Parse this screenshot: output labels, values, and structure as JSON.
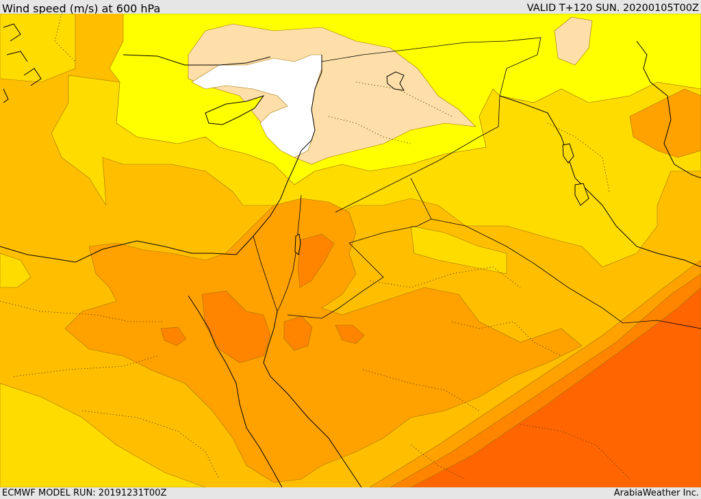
{
  "header": {
    "title": "Wind speed (m/s) at 600 hPa",
    "valid": "VALID T+120 SUN. 20200105T00Z"
  },
  "footer": {
    "model_run": "ECMWF MODEL RUN: 20191231T00Z",
    "credit": "ArabiaWeather Inc."
  },
  "colors": {
    "frame": "#e6e6e6",
    "white": "#ffffff",
    "light": "#ffdfa9",
    "yellow": "#ffff00",
    "gold": "#ffdc00",
    "amber": "#ffbf00",
    "orange": "#ffa200",
    "deep_orange": "#ff8400",
    "red_orange": "#ff6500"
  }
}
